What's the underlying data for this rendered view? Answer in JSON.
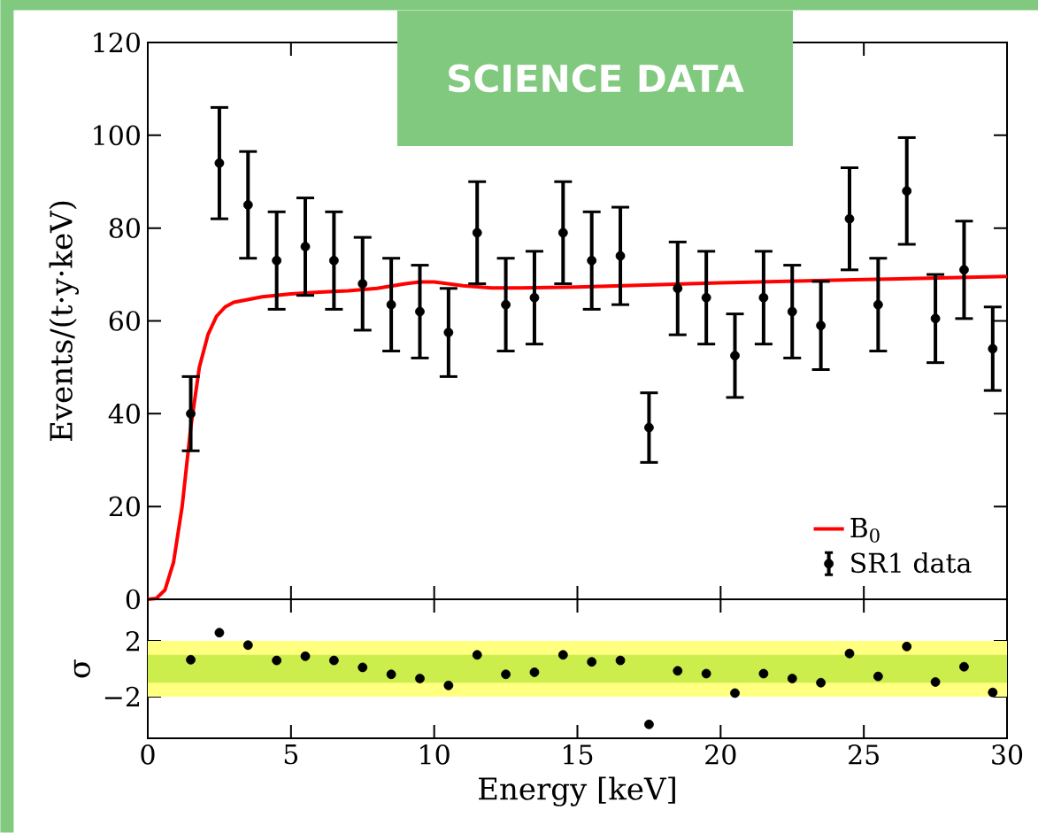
{
  "chart_data": [
    {
      "type": "scatter",
      "xlim": [
        0,
        30
      ],
      "xticks": [
        0,
        5,
        10,
        15,
        20,
        25,
        30
      ],
      "ylim": [
        0,
        120
      ],
      "yticks": [
        0,
        20,
        40,
        60,
        80,
        100,
        120
      ],
      "ylabel": "Events/(t·y·keV)",
      "tick_labels": "y",
      "legend": "bottom right",
      "grid": false,
      "annotations": [
        "SCIENCE DATA"
      ],
      "x": [
        1.5,
        2.5,
        3.5,
        4.5,
        5.5,
        6.5,
        7.5,
        8.5,
        9.5,
        10.5,
        11.5,
        12.5,
        13.5,
        14.5,
        15.5,
        16.5,
        17.5,
        18.5,
        19.5,
        20.5,
        21.5,
        22.5,
        23.5,
        24.5,
        25.5,
        26.5,
        27.5,
        28.5,
        29.5
      ],
      "series": [
        {
          "name": "B$_{0}$",
          "type": "line",
          "color": "#ff0000",
          "marker": "none",
          "line_style": "solid",
          "x": [
            0,
            0.3,
            0.6,
            0.9,
            1.2,
            1.5,
            1.8,
            2.1,
            2.4,
            2.7,
            3,
            4,
            5,
            6,
            7,
            8,
            9,
            9.5,
            10,
            11,
            12,
            13,
            15,
            20,
            25,
            30
          ],
          "values": [
            0,
            0.2,
            2,
            8,
            20,
            37,
            50,
            57,
            61,
            63,
            64,
            65.2,
            65.8,
            66.2,
            66.5,
            67,
            68,
            68.4,
            68.4,
            67.6,
            67.1,
            67.1,
            67.3,
            68.2,
            68.9,
            69.6
          ]
        },
        {
          "name": "SR1 data",
          "color": "#000000",
          "marker": "circle",
          "values": [
            40,
            94,
            85,
            73,
            76,
            73,
            68,
            63.5,
            62,
            57.5,
            79,
            63.5,
            65,
            79,
            73,
            74,
            37,
            67,
            65,
            52.5,
            65,
            62,
            59,
            82,
            63.5,
            88,
            60.5,
            71,
            54
          ],
          "errors": [
            8,
            12,
            11.5,
            10.5,
            10.5,
            10.5,
            10,
            10,
            10,
            9.5,
            11,
            10,
            10,
            11,
            10.5,
            10.5,
            7.5,
            10,
            10,
            9,
            10,
            10,
            9.5,
            11,
            10,
            11.5,
            9.5,
            10.5,
            9
          ]
        }
      ]
    },
    {
      "type": "scatter",
      "xlim": [
        0,
        30
      ],
      "xticks": [
        0,
        5,
        10,
        15,
        20,
        25,
        30
      ],
      "ylim": [
        -5,
        5
      ],
      "yticks": [
        2,
        {
          "value": -2,
          "label": "−2"
        }
      ],
      "xlabel": "Energy [keV]",
      "ylabel": "σ",
      "grid": false,
      "bands": [
        {
          "axis": "y",
          "from": -2,
          "to": 2,
          "color": "#ffff80"
        },
        {
          "axis": "y",
          "from": -1,
          "to": 1,
          "color": "#ccee4d"
        }
      ],
      "x": [
        1.5,
        2.5,
        3.5,
        4.5,
        5.5,
        6.5,
        7.5,
        8.5,
        9.5,
        10.5,
        11.5,
        12.5,
        13.5,
        14.5,
        15.5,
        16.5,
        17.5,
        18.5,
        19.5,
        20.5,
        21.5,
        22.5,
        23.5,
        24.5,
        25.5,
        26.5,
        27.5,
        28.5,
        29.5
      ],
      "series": [
        {
          "color": "#000000",
          "marker": "circle",
          "values": [
            0.65,
            2.6,
            1.7,
            0.6,
            0.9,
            0.6,
            0.1,
            -0.4,
            -0.7,
            -1.2,
            1,
            -0.4,
            -0.25,
            1,
            0.5,
            0.6,
            -4,
            -0.15,
            -0.35,
            -1.75,
            -0.35,
            -0.7,
            -1,
            1.1,
            -0.55,
            1.6,
            -0.95,
            0.15,
            -1.7
          ]
        }
      ]
    }
  ]
}
